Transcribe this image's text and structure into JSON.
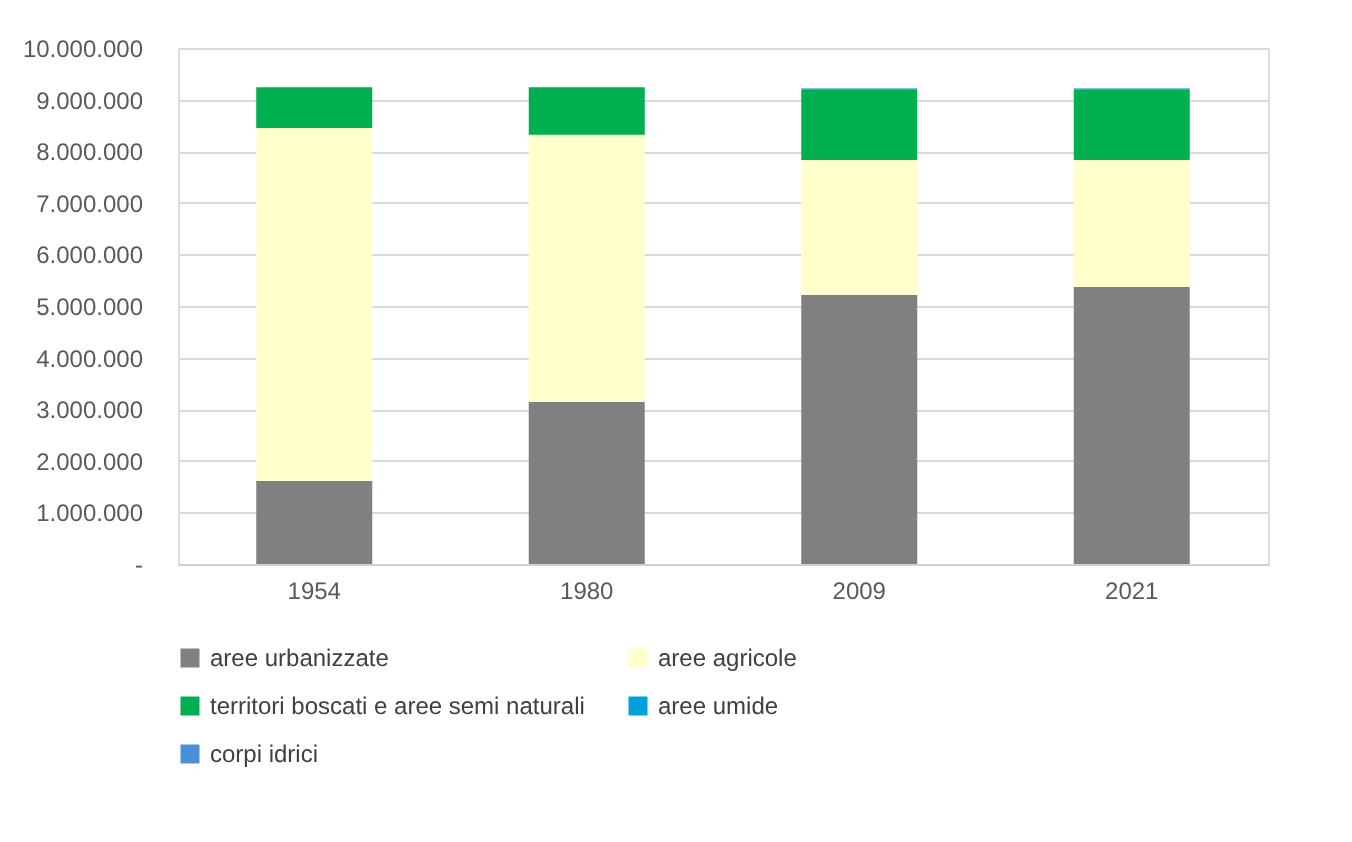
{
  "chart_data": {
    "type": "bar",
    "stacked": true,
    "categories": [
      "1954",
      "1980",
      "2009",
      "2021"
    ],
    "series": [
      {
        "name": "aree urbanizzate",
        "color": "#808080",
        "values": [
          1610000,
          3140000,
          5220000,
          5370000
        ]
      },
      {
        "name": "aree agricole",
        "color": "#ffffcc",
        "values": [
          6840000,
          5180000,
          2610000,
          2460000
        ]
      },
      {
        "name": "territori boscati e aree semi naturali",
        "color": "#00b050",
        "values": [
          790000,
          920000,
          1370000,
          1370000
        ]
      },
      {
        "name": "aree umide",
        "color": "#00a0dc",
        "values": [
          0,
          0,
          10000,
          10000
        ]
      },
      {
        "name": "corpi idrici",
        "color": "#4a90d9",
        "values": [
          0,
          0,
          10000,
          10000
        ]
      }
    ],
    "ylim": [
      0,
      10000000
    ],
    "yticks": [
      {
        "value": 0,
        "label": "-"
      },
      {
        "value": 1000000,
        "label": "1.000.000"
      },
      {
        "value": 2000000,
        "label": "2.000.000"
      },
      {
        "value": 3000000,
        "label": "3.000.000"
      },
      {
        "value": 4000000,
        "label": "4.000.000"
      },
      {
        "value": 5000000,
        "label": "5.000.000"
      },
      {
        "value": 6000000,
        "label": "6.000.000"
      },
      {
        "value": 7000000,
        "label": "7.000.000"
      },
      {
        "value": 8000000,
        "label": "8.000.000"
      },
      {
        "value": 9000000,
        "label": "9.000.000"
      },
      {
        "value": 10000000,
        "label": "10.000.000"
      }
    ],
    "grid": "y",
    "legend": "bottom"
  }
}
